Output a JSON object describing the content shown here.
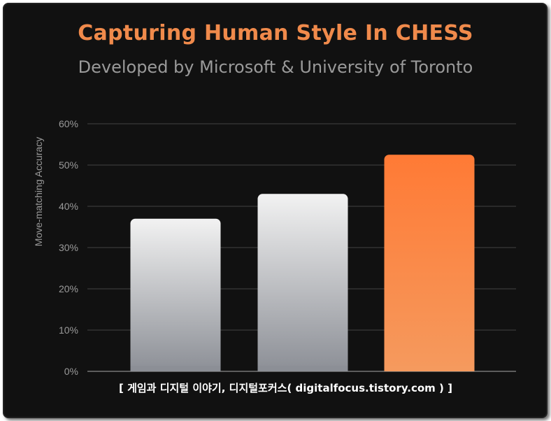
{
  "chart_data": {
    "type": "bar",
    "title": "Capturing Human Style In CHESS",
    "subtitle": "Developed by Microsoft & University of Toronto",
    "ylabel": "Move-matching Accuracy",
    "xlabel": "",
    "categories": [
      "",
      "",
      ""
    ],
    "values": [
      37,
      43,
      52.5
    ],
    "ylim": [
      0,
      60
    ],
    "yticks": [
      0,
      10,
      20,
      30,
      40,
      50,
      60
    ],
    "ytick_suffix": "%",
    "grid": true,
    "bar_colors": [
      "#e4e4e4",
      "#e4e4e4",
      "#f07a3c"
    ]
  },
  "watermark": "[ 게임과 디지털 이야기, 디지털포커스( digitalfocus.tistory.com ) ]"
}
